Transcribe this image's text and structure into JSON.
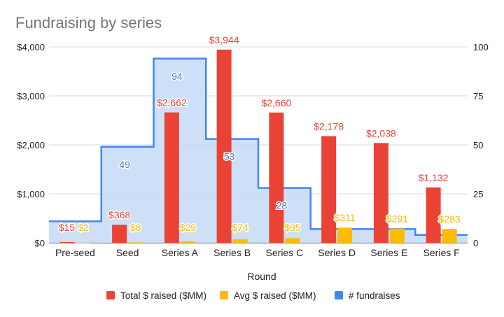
{
  "chart_data": {
    "type": "bar",
    "title": "Fundraising by series",
    "xlabel": "Round",
    "ylabel": "",
    "y2label": "",
    "categories": [
      "Pre-seed",
      "Seed",
      "Series A",
      "Series B",
      "Series C",
      "Series D",
      "Series E",
      "Series F"
    ],
    "ylim": [
      0,
      4000
    ],
    "y2lim": [
      0,
      100
    ],
    "y_ticks": [
      "$0",
      "$1,000",
      "$2,000",
      "$3,000",
      "$4,000"
    ],
    "y2_ticks": [
      "0",
      "25",
      "50",
      "75",
      "100"
    ],
    "grid": true,
    "legend_position": "bottom",
    "series": [
      {
        "name": "Total $ raised ($MM)",
        "kind": "bar",
        "axis": "left",
        "color": "#ea4335",
        "values": [
          15,
          368,
          2662,
          3944,
          2660,
          2178,
          2038,
          1132
        ],
        "labels": [
          "$15",
          "$368",
          "$2,662",
          "$3,944",
          "$2,660",
          "$2,178",
          "$2,038",
          "$1,132"
        ]
      },
      {
        "name": "Avg $ raised ($MM)",
        "kind": "bar",
        "axis": "left",
        "color": "#fbbc04",
        "values": [
          2,
          8,
          29,
          74,
          95,
          311,
          291,
          283
        ],
        "labels": [
          "$2",
          "$8",
          "$29",
          "$74",
          "$95",
          "$311",
          "$291",
          "$283"
        ]
      },
      {
        "name": "# fundraises",
        "kind": "stepped-area",
        "axis": "right",
        "color": "#4285f4",
        "fill": "#c6d9f7",
        "values": [
          11,
          49,
          94,
          53,
          28,
          7,
          7,
          4
        ],
        "labels": [
          "",
          "49",
          "94",
          "53",
          "28",
          "",
          "",
          ""
        ]
      }
    ]
  }
}
